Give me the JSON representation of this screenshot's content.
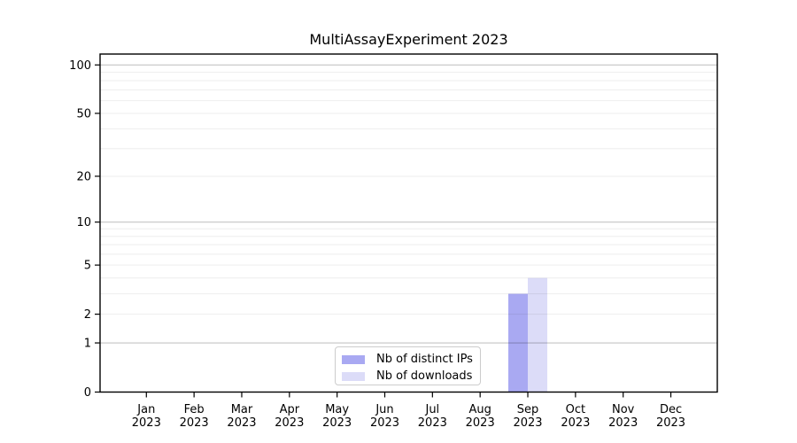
{
  "chart_data": {
    "type": "bar",
    "title": "MultiAssayExperiment 2023",
    "categories": [
      "Jan 2023",
      "Feb 2023",
      "Mar 2023",
      "Apr 2023",
      "May 2023",
      "Jun 2023",
      "Jul 2023",
      "Aug 2023",
      "Sep 2023",
      "Oct 2023",
      "Nov 2023",
      "Dec 2023"
    ],
    "series": [
      {
        "name": "Nb of distinct IPs",
        "color": "#a9a9f2",
        "values": [
          0,
          0,
          0,
          0,
          0,
          0,
          0,
          0,
          3,
          0,
          0,
          0
        ]
      },
      {
        "name": "Nb of downloads",
        "color": "#dcdcf8",
        "values": [
          0,
          0,
          0,
          0,
          0,
          0,
          0,
          0,
          4,
          0,
          0,
          0
        ]
      }
    ],
    "xlabel": "",
    "ylabel": "",
    "y_axis": {
      "scale": "log1p",
      "ylim": [
        0,
        117
      ],
      "tick_values": [
        0,
        1,
        2,
        5,
        10,
        20,
        50,
        100
      ],
      "tick_labels": [
        "0",
        "1",
        "2",
        "5",
        "10",
        "20",
        "50",
        "100"
      ],
      "minor_gridlines": [
        2,
        3,
        4,
        5,
        6,
        7,
        8,
        9,
        20,
        30,
        40,
        50,
        60,
        70,
        80,
        90
      ],
      "major_gridlines": [
        1,
        10,
        100
      ]
    },
    "grid": true,
    "legend_position": "bottom-center"
  },
  "colors": {
    "background": "#ffffff",
    "axis": "#000000",
    "text": "#000000",
    "grid_minor_rgba": "rgba(0,0,0,0.07)",
    "grid_major_rgba": "rgba(0,0,0,0.23)",
    "legend_border": "#cccccc"
  }
}
